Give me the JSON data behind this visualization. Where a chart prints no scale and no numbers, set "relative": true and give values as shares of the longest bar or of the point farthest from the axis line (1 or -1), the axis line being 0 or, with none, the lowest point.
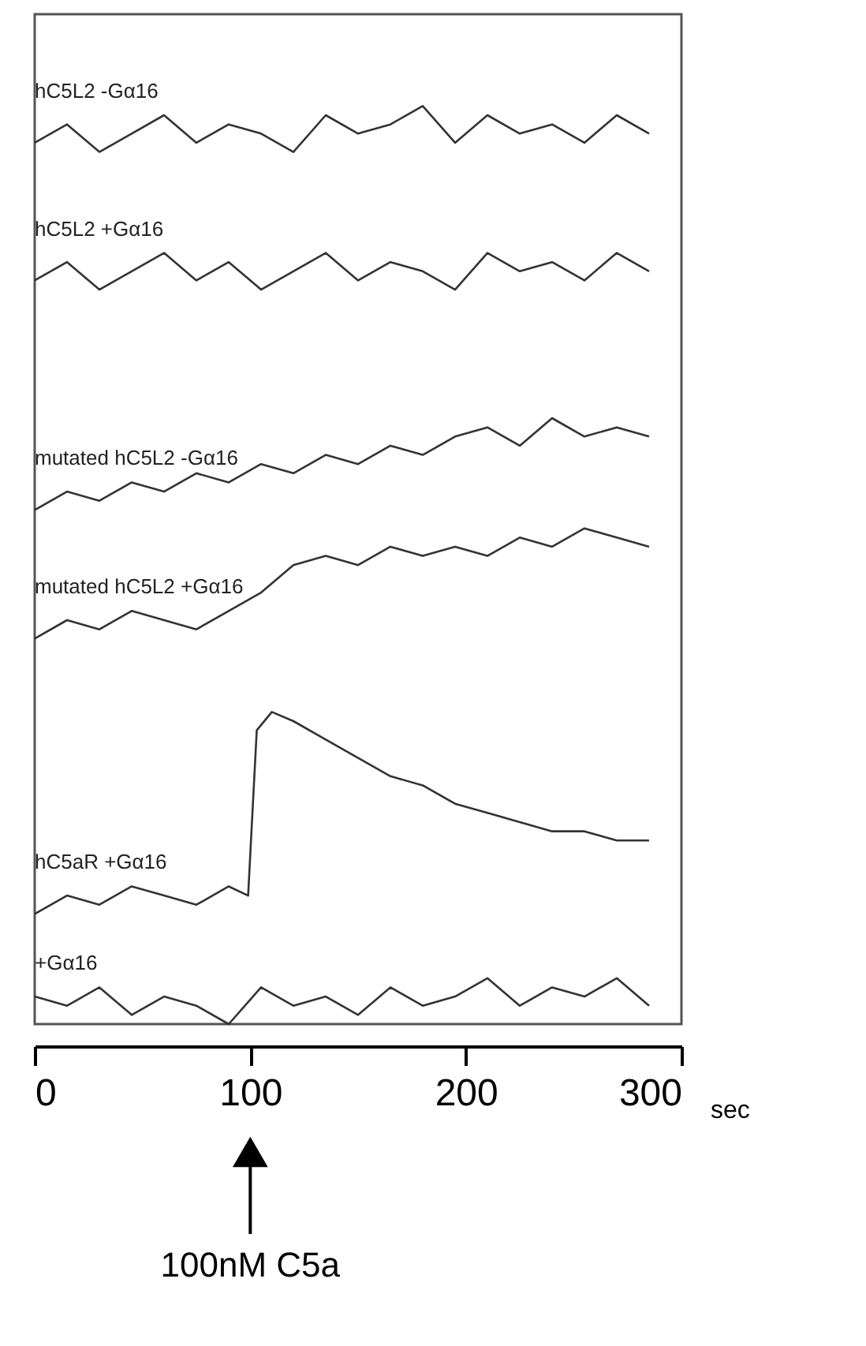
{
  "chart_data": {
    "type": "line",
    "relative": true,
    "xlabel": "sec",
    "xlim": [
      0,
      300
    ],
    "xticks": [
      0,
      100,
      200,
      300
    ],
    "grid": false,
    "x": [
      0,
      15,
      30,
      45,
      60,
      75,
      90,
      105,
      120,
      135,
      150,
      165,
      180,
      195,
      210,
      225,
      240,
      255,
      270,
      285
    ],
    "series": [
      {
        "name": "hC5L2 -Gα16",
        "color": "#333333",
        "values": [
          0.96,
          0.98,
          0.95,
          0.97,
          0.99,
          0.96,
          0.98,
          0.97,
          0.95,
          0.99,
          0.97,
          0.98,
          1.0,
          0.96,
          0.99,
          0.97,
          0.98,
          0.96,
          0.99,
          0.97
        ]
      },
      {
        "name": "hC5L2 +Gα16",
        "color": "#333333",
        "values": [
          0.81,
          0.83,
          0.8,
          0.82,
          0.84,
          0.81,
          0.83,
          0.8,
          0.82,
          0.84,
          0.81,
          0.83,
          0.82,
          0.8,
          0.84,
          0.82,
          0.83,
          0.81,
          0.84,
          0.82
        ]
      },
      {
        "name": "mutated hC5L2 -Gα16",
        "color": "#333333",
        "values": [
          0.56,
          0.58,
          0.57,
          0.59,
          0.58,
          0.6,
          0.59,
          0.61,
          0.6,
          0.62,
          0.61,
          0.63,
          0.62,
          0.64,
          0.65,
          0.63,
          0.66,
          0.64,
          0.65,
          0.64
        ]
      },
      {
        "name": "mutated hC5L2 +Gα16",
        "color": "#333333",
        "values": [
          0.42,
          0.44,
          0.43,
          0.45,
          0.44,
          0.43,
          0.45,
          0.47,
          0.5,
          0.51,
          0.5,
          0.52,
          0.51,
          0.52,
          0.51,
          0.53,
          0.52,
          0.54,
          0.53,
          0.52
        ]
      },
      {
        "name": "hC5aR +Gα16",
        "color": "#333333",
        "x": [
          0,
          15,
          30,
          45,
          60,
          75,
          90,
          99,
          103,
          110,
          120,
          135,
          150,
          165,
          180,
          195,
          210,
          225,
          240,
          255,
          270,
          285
        ],
        "values": [
          0.12,
          0.14,
          0.13,
          0.15,
          0.14,
          0.13,
          0.15,
          0.14,
          0.32,
          0.34,
          0.33,
          0.31,
          0.29,
          0.27,
          0.26,
          0.24,
          0.23,
          0.22,
          0.21,
          0.21,
          0.2,
          0.2
        ]
      },
      {
        "name": "+Gα16",
        "color": "#333333",
        "values": [
          0.03,
          0.02,
          0.04,
          0.01,
          0.03,
          0.02,
          0.0,
          0.04,
          0.02,
          0.03,
          0.01,
          0.04,
          0.02,
          0.03,
          0.05,
          0.02,
          0.04,
          0.03,
          0.05,
          0.02
        ]
      }
    ],
    "ref_lines": [
      {
        "axis": "x",
        "value": 100,
        "label": "100nM C5a"
      }
    ]
  }
}
